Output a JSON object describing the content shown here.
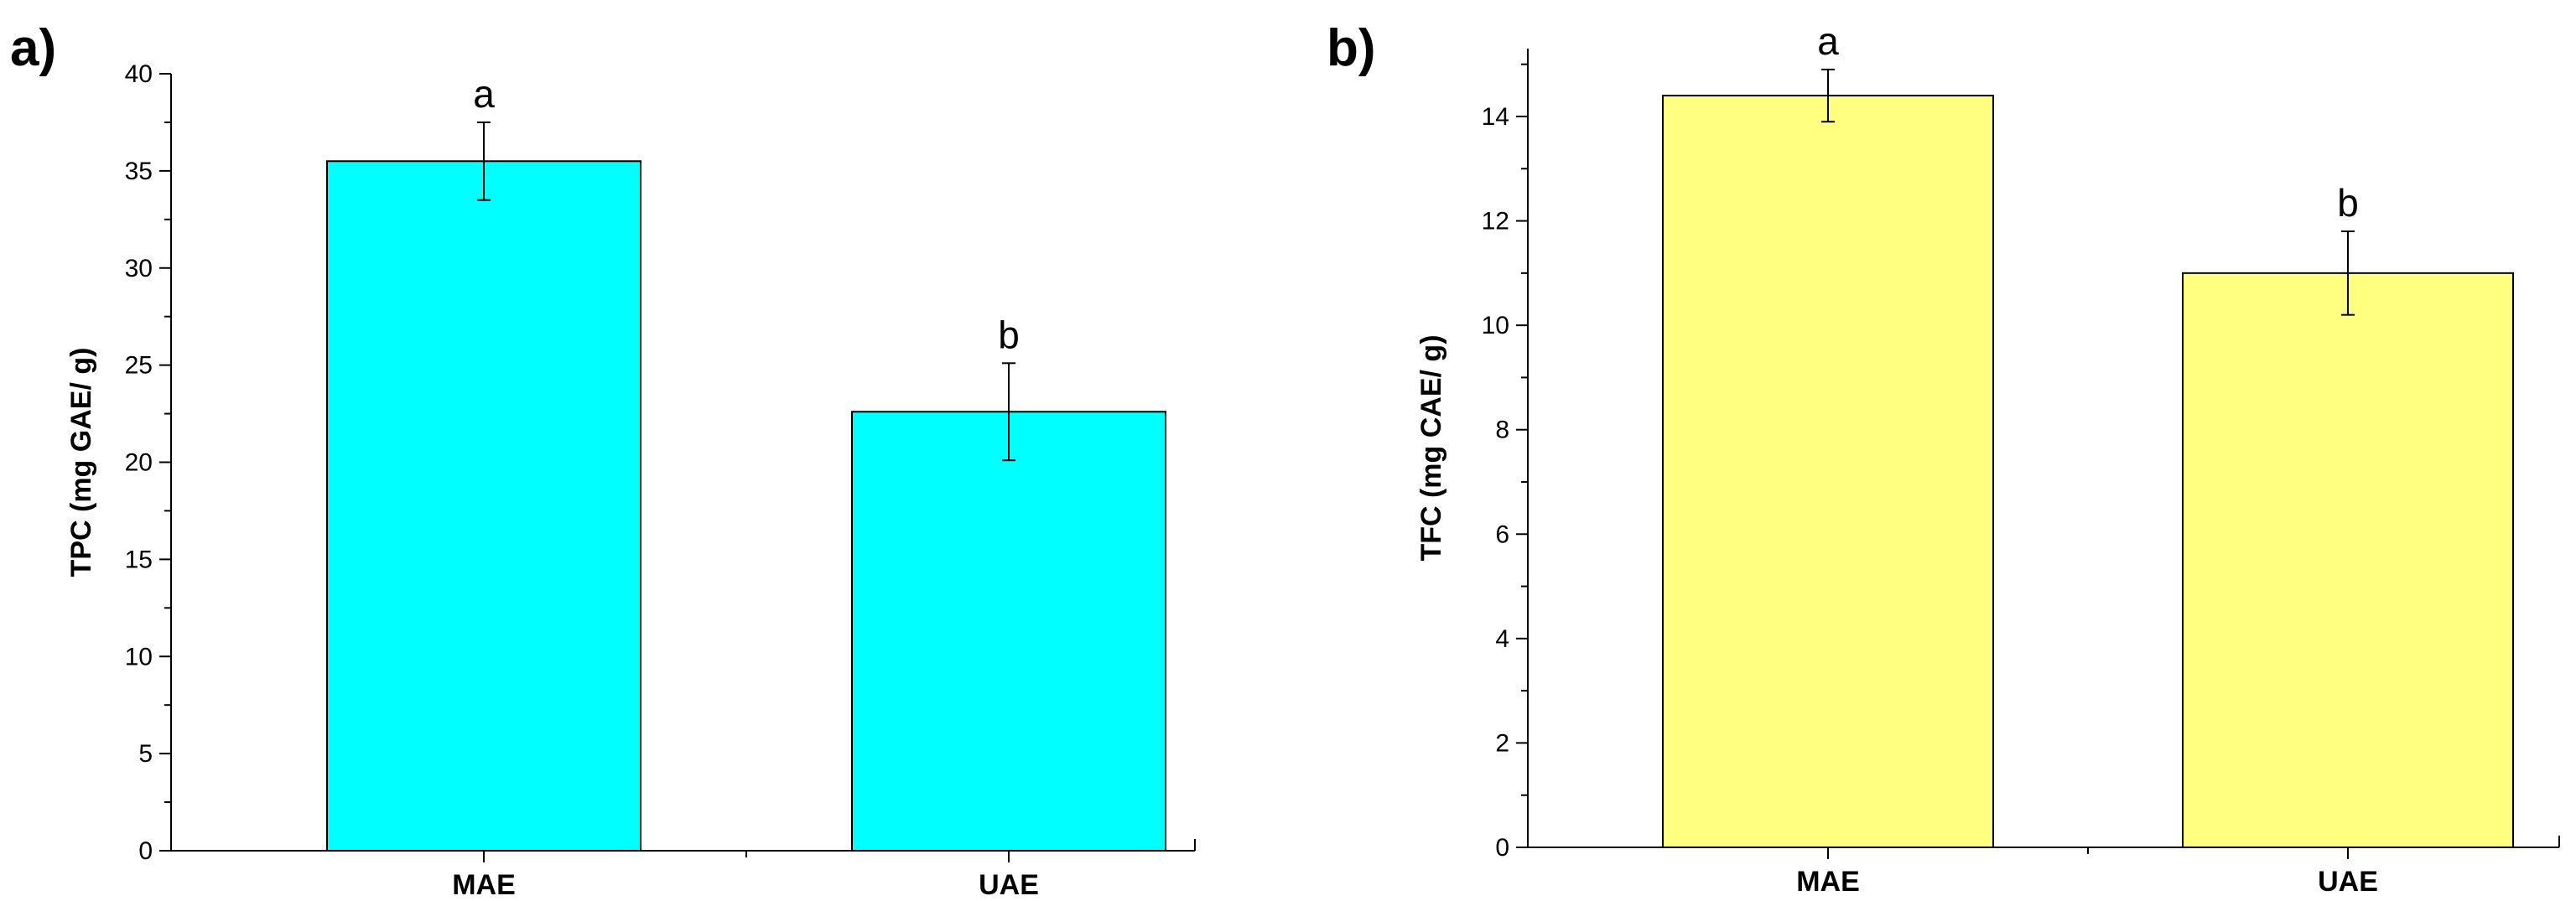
{
  "chart_data": [
    {
      "type": "bar",
      "panel_label": "a)",
      "categories": [
        "MAE",
        "UAE"
      ],
      "values": [
        35.5,
        22.6
      ],
      "errors": [
        2.0,
        2.5
      ],
      "significance": [
        "a",
        "b"
      ],
      "ylabel": "TPC (mg GAE/ g)",
      "ylim": [
        0,
        40
      ],
      "yticks": [
        0,
        5,
        10,
        15,
        20,
        25,
        30,
        35,
        40
      ],
      "bar_color": "#00FFFF",
      "grid": false
    },
    {
      "type": "bar",
      "panel_label": "b)",
      "categories": [
        "MAE",
        "UAE"
      ],
      "values": [
        14.4,
        11.0
      ],
      "errors": [
        0.5,
        0.8
      ],
      "significance": [
        "a",
        "b"
      ],
      "ylabel": "TFC (mg CAE/ g)",
      "ylim": [
        0,
        15.3
      ],
      "yticks": [
        0,
        2,
        4,
        6,
        8,
        10,
        12,
        14
      ],
      "bar_color": "#FFFF80",
      "grid": false
    }
  ]
}
